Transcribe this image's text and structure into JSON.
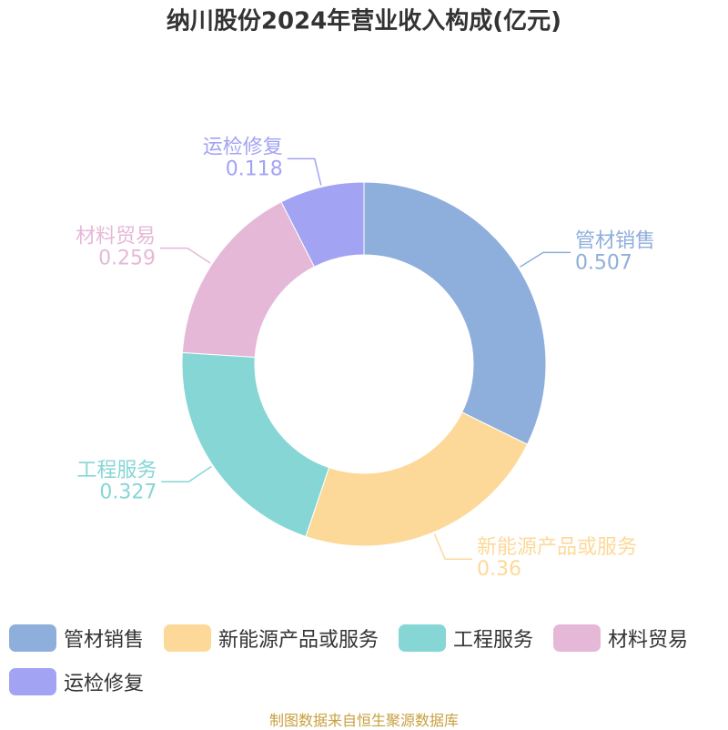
{
  "chart_data": {
    "type": "pie",
    "title": "纳川股份2024年营业收入构成(亿元)",
    "categories": [
      "管材销售",
      "新能源产品或服务",
      "工程服务",
      "材料贸易",
      "运检修复"
    ],
    "values": [
      0.507,
      0.36,
      0.327,
      0.259,
      0.118
    ],
    "colors": [
      "#8eaedb",
      "#fdd999",
      "#86d6d6",
      "#e6b8d8",
      "#a3a3f4"
    ],
    "donut": true,
    "source": "制图数据来自恒生聚源数据库"
  }
}
